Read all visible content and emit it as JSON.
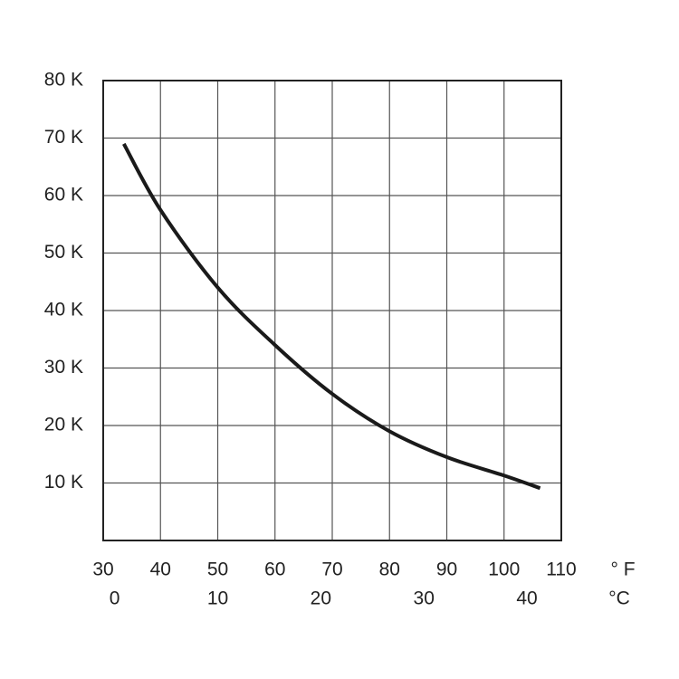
{
  "chart_data": {
    "type": "line",
    "x": [
      33.6,
      40,
      50,
      60,
      70,
      80,
      90,
      100,
      106.3
    ],
    "series": [
      {
        "color": "#1a1a1a",
        "values": [
          69,
          57.5,
          44,
          34,
          25.5,
          19,
          14.5,
          11.3,
          9.1
        ]
      }
    ],
    "xlim": [
      30,
      110
    ],
    "xticks": [
      30,
      40,
      50,
      60,
      70,
      80,
      90,
      100,
      110
    ],
    "x_unit": "° F",
    "x2lim": [
      -1.1111,
      43.3333
    ],
    "x2ticks": [
      0,
      10,
      20,
      30,
      40
    ],
    "x2_unit": "°C",
    "ylim": [
      0,
      80
    ],
    "yticks": [
      {
        "value": 10,
        "label": "10 K"
      },
      {
        "value": 20,
        "label": "20 K"
      },
      {
        "value": 30,
        "label": "30 K"
      },
      {
        "value": 40,
        "label": "40 K"
      },
      {
        "value": 50,
        "label": "50 K"
      },
      {
        "value": 60,
        "label": "60 K"
      },
      {
        "value": 70,
        "label": "70 K"
      },
      {
        "value": 80,
        "label": "80 K"
      }
    ],
    "grid": true
  }
}
